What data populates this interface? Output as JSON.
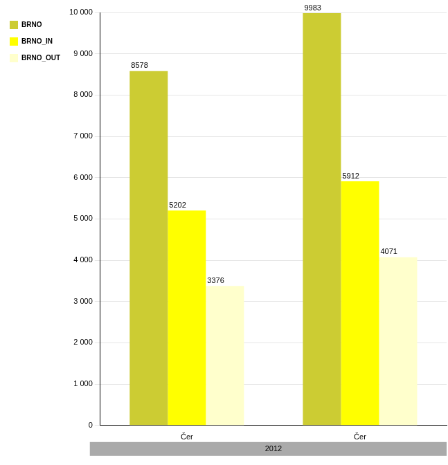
{
  "chart_data": {
    "type": "bar",
    "categories": [
      "Čer",
      "Čer"
    ],
    "category_group": "2012",
    "series": [
      {
        "name": "BRNO",
        "color": "#cccc33",
        "values": [
          8578,
          9983
        ]
      },
      {
        "name": "BRNO_IN",
        "color": "#ffff00",
        "values": [
          5202,
          5912
        ]
      },
      {
        "name": "BRNO_OUT",
        "color": "#ffffcc",
        "values": [
          3376,
          4071
        ]
      }
    ],
    "ylim": [
      0,
      10000
    ],
    "yticks": [
      0,
      {
        "value": 1000,
        "label": "1 000"
      },
      {
        "value": 2000,
        "label": "2 000"
      },
      {
        "value": 3000,
        "label": "3 000"
      },
      {
        "value": 4000,
        "label": "4 000"
      },
      {
        "value": 5000,
        "label": "5 000"
      },
      {
        "value": 6000,
        "label": "6 000"
      },
      {
        "value": 7000,
        "label": "7 000"
      },
      {
        "value": 8000,
        "label": "8 000"
      },
      {
        "value": 9000,
        "label": "9 000"
      },
      {
        "value": 10000,
        "label": "10 000"
      }
    ],
    "grid": true,
    "legend": "top-left",
    "data_labels": true
  }
}
